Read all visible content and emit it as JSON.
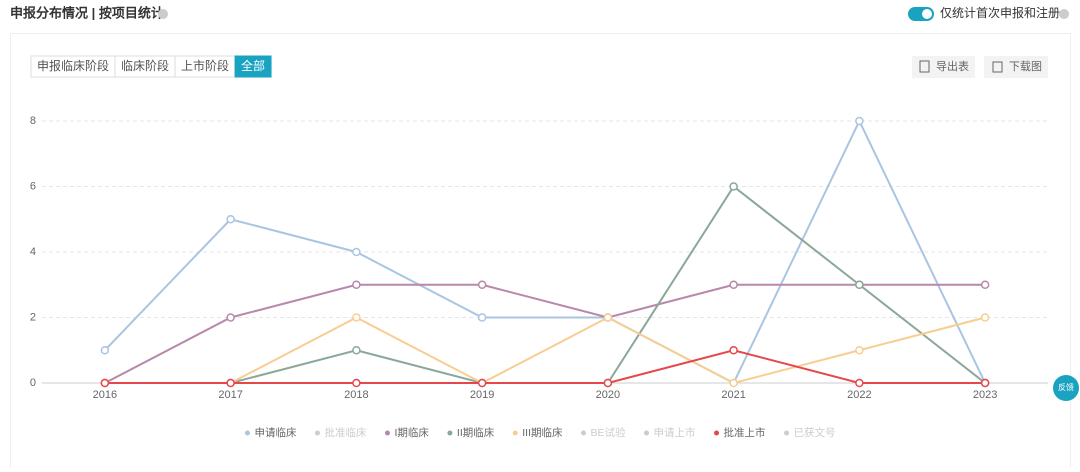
{
  "header": {
    "title": "申报分布情况 | 按项目统计",
    "toggle_label": "仅统计首次申报和注册"
  },
  "tabs": [
    "申报临床阶段",
    "临床阶段",
    "上市阶段",
    "全部"
  ],
  "active_tab": 3,
  "buttons": [
    "导出表",
    "下载图"
  ],
  "feedback": "反馈",
  "chart_data": {
    "type": "line",
    "categories": [
      "2016",
      "2017",
      "2018",
      "2019",
      "2020",
      "2021",
      "2022",
      "2023"
    ],
    "ylim": [
      0,
      8
    ],
    "yticks": [
      0,
      2,
      4,
      6,
      8
    ],
    "grid": true,
    "series": [
      {
        "name": "申请临床",
        "color": "#a9c5e1",
        "values": [
          1,
          5,
          4,
          2,
          2,
          0,
          8,
          0
        ]
      },
      {
        "name": "批准临床",
        "color": "#cccccc",
        "visible": false
      },
      {
        "name": "I期临床",
        "color": "#b887ab",
        "values": [
          0,
          2,
          3,
          3,
          2,
          3,
          3,
          3
        ]
      },
      {
        "name": "II期临床",
        "color": "#8aa898",
        "values": [
          0,
          0,
          1,
          0,
          0,
          6,
          3,
          0
        ]
      },
      {
        "name": "III期临床",
        "color": "#f8cd92",
        "values": [
          0,
          0,
          2,
          0,
          2,
          0,
          1,
          2
        ]
      },
      {
        "name": "BE试验",
        "color": "#cccccc",
        "visible": false
      },
      {
        "name": "申请上市",
        "color": "#cccccc",
        "visible": false
      },
      {
        "name": "批准上市",
        "color": "#e5474b",
        "values": [
          0,
          0,
          0,
          0,
          0,
          1,
          0,
          0
        ]
      },
      {
        "name": "已获文号",
        "color": "#cccccc",
        "visible": false
      }
    ]
  }
}
